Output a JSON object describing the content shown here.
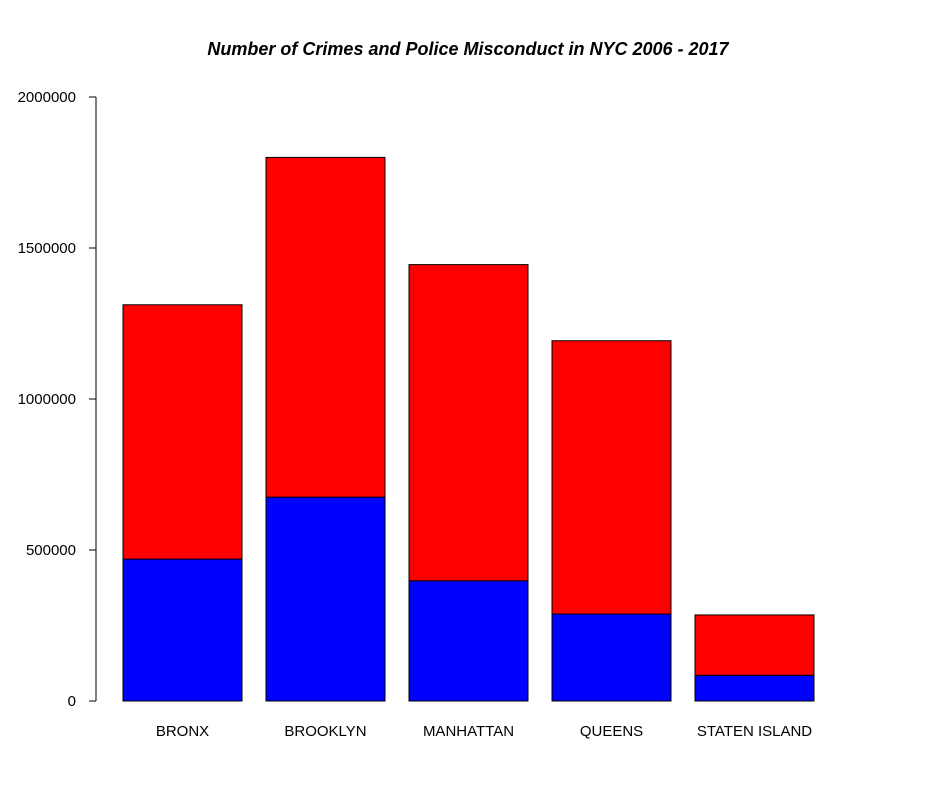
{
  "chart_data": {
    "type": "bar",
    "stacked": true,
    "title": "Number of Crimes and Police Misconduct in NYC 2006 - 2017",
    "xlabel": "",
    "ylabel": "",
    "categories": [
      "BRONX",
      "BROOKLYN",
      "MANHATTAN",
      "QUEENS",
      "STATEN ISLAND"
    ],
    "series": [
      {
        "color": "#0000ff",
        "values": [
          470000,
          675000,
          398000,
          288000,
          85000
        ]
      },
      {
        "color": "#ff0000",
        "values": [
          842000,
          1125000,
          1047000,
          905000,
          200000
        ]
      }
    ],
    "ylim": [
      0,
      2000000
    ],
    "yticks": [
      0,
      500000,
      1000000,
      1500000,
      2000000
    ],
    "ytick_labels": [
      "0",
      "500000",
      "1000000",
      "1500000",
      "2000000"
    ],
    "grid": false,
    "legend": "none"
  }
}
